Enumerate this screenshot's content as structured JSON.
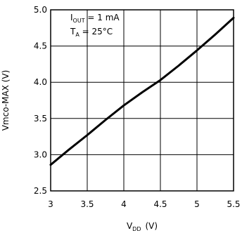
{
  "chart_data": {
    "type": "line",
    "xlabel": {
      "main": "V",
      "sub": "DD",
      "unit": "(V)"
    },
    "ylabel": "Vmco-MAX (V)",
    "xlim": [
      3,
      5.5
    ],
    "ylim": [
      2.5,
      5.0
    ],
    "x_ticks": [
      "3",
      "3.5",
      "4",
      "4.5",
      "5",
      "5.5"
    ],
    "y_ticks": [
      "2.5",
      "3.0",
      "3.5",
      "4.0",
      "4.5",
      "5.0"
    ],
    "grid": true,
    "annotations": [
      {
        "main": "I",
        "sub": "OUT",
        "rest": " = 1 mA"
      },
      {
        "main": "T",
        "sub": "A",
        "rest": " = 25°C"
      }
    ],
    "series": [
      {
        "color": "#000000",
        "x": [
          3.0,
          3.25,
          3.5,
          3.75,
          4.0,
          4.25,
          4.5,
          4.75,
          5.0,
          5.25,
          5.5
        ],
        "y": [
          2.86,
          3.07,
          3.27,
          3.48,
          3.68,
          3.86,
          4.03,
          4.23,
          4.44,
          4.66,
          4.89
        ]
      }
    ]
  }
}
